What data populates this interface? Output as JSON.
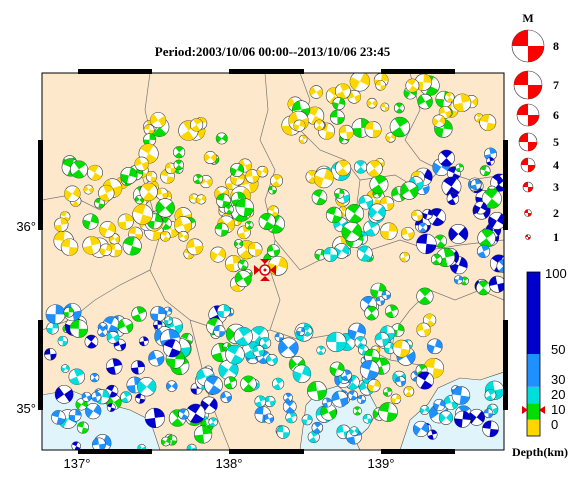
{
  "title": "Period:2003/10/06 00:00--2013/10/06 23:45",
  "lon_ticks": [
    {
      "label": "137°",
      "value": 137
    },
    {
      "label": "138°",
      "value": 138
    },
    {
      "label": "139°",
      "value": 139
    }
  ],
  "lat_ticks": [
    {
      "label": "36°",
      "value": 36
    },
    {
      "label": "35°",
      "value": 35
    }
  ],
  "magnitude_legend": {
    "header": "M",
    "items": [
      "8",
      "7",
      "6",
      "5",
      "4",
      "3",
      "2",
      "1"
    ]
  },
  "depth_legend": {
    "unit_label": "Depth(km)",
    "ticks": [
      "100",
      "50",
      "30",
      "20",
      "10",
      "0"
    ],
    "bands": [
      {
        "from": 0,
        "to": 10,
        "color": "#ffd700"
      },
      {
        "from": 10,
        "to": 20,
        "color": "#00dd00"
      },
      {
        "from": 20,
        "to": 30,
        "color": "#00dddd"
      },
      {
        "from": 30,
        "to": 50,
        "color": "#1e90ff"
      },
      {
        "from": 50,
        "to": 100,
        "color": "#0000cc"
      }
    ]
  },
  "colors": {
    "land": "#fde8cc",
    "sea": "#dff5fb",
    "magnitude_beachball": "#ff0000",
    "station_marker": "#dd0000"
  }
}
